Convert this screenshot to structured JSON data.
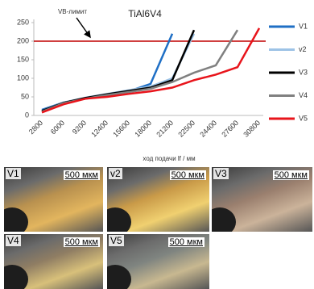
{
  "chart_data": {
    "type": "line",
    "title": "TiAl6V4",
    "x_label": "ход подачи lf / мм",
    "categories": [
      "2800",
      "6000",
      "9200",
      "12400",
      "15600",
      "18000",
      "21200",
      "22500",
      "24400",
      "27600",
      "30800"
    ],
    "ylim": [
      0,
      250
    ],
    "yticks": [
      0,
      50,
      100,
      150,
      200,
      250
    ],
    "grid": false,
    "limit": {
      "value": 200,
      "label": "VB-лимит",
      "color": "#c00000"
    },
    "legend": "right",
    "series": [
      {
        "name": "V1",
        "color": "#1f6fc5",
        "values": [
          15,
          35,
          45,
          55,
          65,
          85,
          220,
          null,
          null,
          null,
          null
        ]
      },
      {
        "name": "v2",
        "color": "#9dc3e6",
        "values": [
          12,
          35,
          48,
          58,
          68,
          78,
          100,
          220,
          null,
          null,
          null
        ]
      },
      {
        "name": "V3",
        "color": "#000000",
        "values": [
          12,
          34,
          47,
          57,
          66,
          75,
          95,
          230,
          null,
          null,
          null
        ]
      },
      {
        "name": "V4",
        "color": "#808080",
        "values": [
          10,
          33,
          45,
          55,
          63,
          72,
          90,
          115,
          135,
          230,
          null
        ]
      },
      {
        "name": "V5",
        "color": "#e8141b",
        "values": [
          8,
          30,
          45,
          50,
          58,
          65,
          75,
          95,
          110,
          130,
          235
        ]
      }
    ]
  },
  "photos": [
    {
      "label": "V1",
      "scale": "500 мкм"
    },
    {
      "label": "v2",
      "scale": "500 мкм"
    },
    {
      "label": "V3",
      "scale": "500 мкм"
    },
    {
      "label": "V4",
      "scale": "500 мкм"
    },
    {
      "label": "V5",
      "scale": "500 мкм"
    }
  ]
}
